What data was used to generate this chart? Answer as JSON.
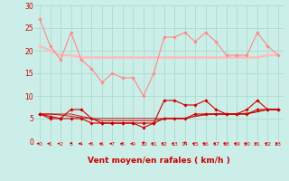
{
  "bg_color": "#cceee8",
  "grid_color": "#aaddcc",
  "text_color": "#cc0000",
  "xlabel": "Vent moyen/en rafales ( km/h )",
  "x": [
    0,
    1,
    2,
    3,
    4,
    5,
    6,
    7,
    8,
    9,
    10,
    11,
    12,
    13,
    14,
    15,
    16,
    17,
    18,
    19,
    20,
    21,
    22,
    23
  ],
  "yticks": [
    0,
    5,
    10,
    15,
    20,
    25,
    30
  ],
  "series": [
    {
      "color": "#ff8888",
      "lw": 0.8,
      "marker": "D",
      "markersize": 1.8,
      "y": [
        27,
        21,
        18,
        24,
        18,
        16,
        13,
        15,
        14,
        14,
        10,
        15,
        23,
        23,
        24,
        22,
        24,
        22,
        19,
        19,
        19,
        24,
        21,
        19
      ]
    },
    {
      "color": "#ffbbbb",
      "lw": 1.8,
      "marker": null,
      "markersize": 0,
      "y": [
        21,
        20,
        19,
        19,
        18.5,
        18.5,
        18.5,
        18.5,
        18.5,
        18.5,
        18.5,
        18.5,
        18.5,
        18.5,
        18.5,
        18.5,
        18.5,
        18.5,
        18.5,
        18.5,
        18.5,
        18.5,
        19,
        19
      ]
    },
    {
      "color": "#cc0000",
      "lw": 0.8,
      "marker": "D",
      "markersize": 1.8,
      "y": [
        6,
        5,
        5,
        7,
        7,
        5,
        4,
        4,
        4,
        4,
        3,
        4,
        9,
        9,
        8,
        8,
        9,
        7,
        6,
        6,
        7,
        9,
        7,
        7
      ]
    },
    {
      "color": "#cc0000",
      "lw": 0.8,
      "marker": "D",
      "markersize": 1.8,
      "y": [
        6,
        5.5,
        5,
        5,
        5,
        4,
        4,
        4,
        4,
        4,
        4,
        4,
        5,
        5,
        5,
        6,
        6,
        6,
        6,
        6,
        6,
        7,
        7,
        7
      ]
    },
    {
      "color": "#cc0000",
      "lw": 0.7,
      "marker": null,
      "markersize": 0,
      "y": [
        6,
        6,
        5.8,
        5.5,
        5.2,
        5,
        5,
        5,
        5,
        5,
        5,
        5,
        5,
        5,
        5,
        5.5,
        6,
        6,
        6,
        6,
        6,
        6.5,
        7,
        7
      ]
    },
    {
      "color": "#cc0000",
      "lw": 0.6,
      "marker": null,
      "markersize": 0,
      "y": [
        6,
        6,
        6,
        6,
        5.5,
        5,
        4.5,
        4.5,
        4.5,
        4.5,
        4.5,
        4.5,
        5,
        5,
        5,
        5.5,
        5.8,
        6,
        6,
        6,
        6.2,
        6.5,
        7,
        7
      ]
    }
  ]
}
